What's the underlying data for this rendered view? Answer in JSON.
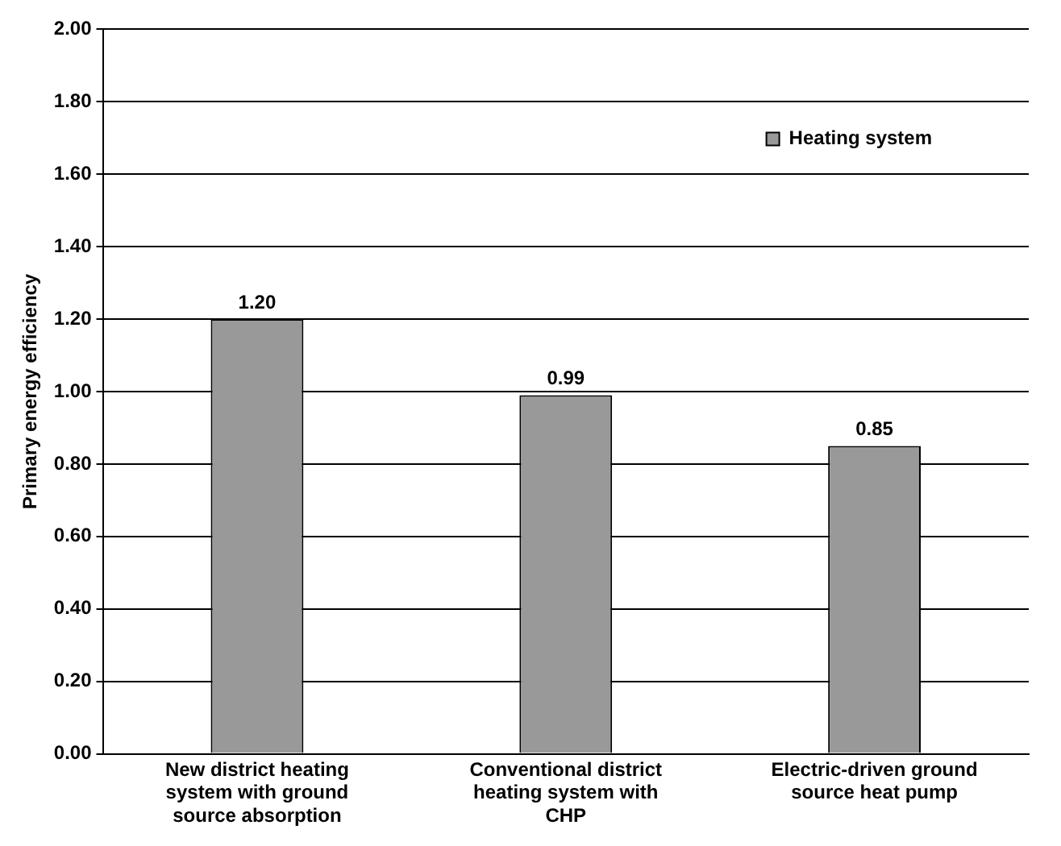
{
  "chart_data": {
    "type": "bar",
    "ylabel": "Primary energy efficiency",
    "categories": [
      "New district heating system with ground source absorption",
      "Conventional district heating system with CHP",
      "Electric-driven ground source heat pump"
    ],
    "series": [
      {
        "name": "Heating system",
        "color": "#999999",
        "values": [
          1.2,
          0.99,
          0.85
        ],
        "value_labels": [
          "1.20",
          "0.99",
          "0.85"
        ]
      }
    ],
    "ylim": [
      0,
      2
    ],
    "yticks": [
      {
        "value": 0,
        "label": "0.00"
      },
      {
        "value": 0.2,
        "label": "0.20"
      },
      {
        "value": 0.4,
        "label": "0.40"
      },
      {
        "value": 0.6,
        "label": "0.60"
      },
      {
        "value": 0.8,
        "label": "0.80"
      },
      {
        "value": 1,
        "label": "1.00"
      },
      {
        "value": 1.2,
        "label": "1.20"
      },
      {
        "value": 1.4,
        "label": "1.40"
      },
      {
        "value": 1.6,
        "label": "1.60"
      },
      {
        "value": 1.8,
        "label": "1.80"
      },
      {
        "value": 2,
        "label": "2.00"
      }
    ],
    "grid": "y",
    "legend": "top right"
  }
}
